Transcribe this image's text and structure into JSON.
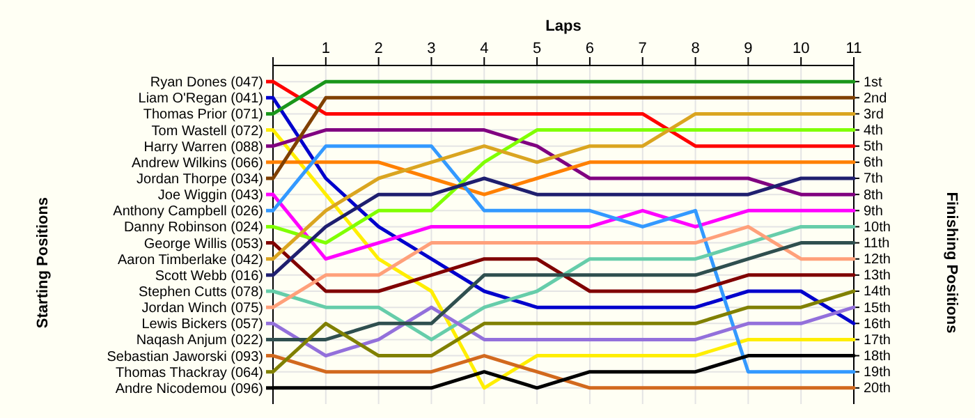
{
  "chart_data": {
    "type": "line",
    "xlabel": "Laps",
    "ylabel": "Finishing Positions",
    "annotations": [
      "Starting Positions"
    ],
    "x": [
      0,
      1,
      2,
      3,
      4,
      5,
      6,
      7,
      8,
      9,
      10,
      11
    ],
    "xlim": [
      0,
      11
    ],
    "xticks": [
      1,
      2,
      3,
      4,
      5,
      6,
      7,
      8,
      9,
      10,
      11
    ],
    "ylim": [
      21,
      0
    ],
    "yticks": [
      {
        "value": 1,
        "label": "1st"
      },
      {
        "value": 2,
        "label": "2nd"
      },
      {
        "value": 3,
        "label": "3rd"
      },
      {
        "value": 4,
        "label": "4th"
      },
      {
        "value": 5,
        "label": "5th"
      },
      {
        "value": 6,
        "label": "6th"
      },
      {
        "value": 7,
        "label": "7th"
      },
      {
        "value": 8,
        "label": "8th"
      },
      {
        "value": 9,
        "label": "9th"
      },
      {
        "value": 10,
        "label": "10th"
      },
      {
        "value": 11,
        "label": "11th"
      },
      {
        "value": 12,
        "label": "12th"
      },
      {
        "value": 13,
        "label": "13th"
      },
      {
        "value": 14,
        "label": "14th"
      },
      {
        "value": 15,
        "label": "15th"
      },
      {
        "value": 16,
        "label": "16th"
      },
      {
        "value": 17,
        "label": "17th"
      },
      {
        "value": 18,
        "label": "18th"
      },
      {
        "value": 19,
        "label": "19th"
      },
      {
        "value": 20,
        "label": "20th"
      }
    ],
    "grid": true,
    "legend": "left",
    "marker": "none",
    "line_style": "solid",
    "series": [
      {
        "name": "Ryan Dones (047)",
        "color": "#ff0000",
        "values": [
          1,
          3,
          3,
          3,
          3,
          3,
          3,
          3,
          5,
          5,
          5,
          5
        ]
      },
      {
        "name": "Liam O'Regan (041)",
        "color": "#0000cc",
        "values": [
          2,
          7,
          10,
          12,
          14,
          15,
          15,
          15,
          15,
          14,
          14,
          16
        ]
      },
      {
        "name": "Thomas Prior (071)",
        "color": "#1a961a",
        "values": [
          3,
          1,
          1,
          1,
          1,
          1,
          1,
          1,
          1,
          1,
          1,
          1
        ]
      },
      {
        "name": "Tom Wastell (072)",
        "color": "#ffee00",
        "values": [
          4,
          8,
          12,
          14,
          20,
          18,
          18,
          18,
          18,
          17,
          17,
          17
        ]
      },
      {
        "name": "Harry Warren (088)",
        "color": "#800080",
        "values": [
          5,
          4,
          4,
          4,
          4,
          5,
          7,
          7,
          7,
          7,
          8,
          8
        ]
      },
      {
        "name": "Andrew Wilkins (066)",
        "color": "#ff8000",
        "values": [
          6,
          6,
          6,
          7,
          8,
          7,
          6,
          6,
          6,
          6,
          6,
          6
        ]
      },
      {
        "name": "Jordan Thorpe (034)",
        "color": "#804000",
        "values": [
          7,
          2,
          2,
          2,
          2,
          2,
          2,
          2,
          2,
          2,
          2,
          2
        ]
      },
      {
        "name": "Joe Wiggin (043)",
        "color": "#ff00ff",
        "values": [
          8,
          12,
          11,
          10,
          10,
          10,
          10,
          9,
          10,
          9,
          9,
          9
        ]
      },
      {
        "name": "Anthony Campbell (026)",
        "color": "#3399ff",
        "values": [
          9,
          5,
          5,
          5,
          9,
          9,
          9,
          10,
          9,
          19,
          19,
          19
        ]
      },
      {
        "name": "Danny Robinson (024)",
        "color": "#80ff00",
        "values": [
          10,
          11,
          9,
          9,
          6,
          4,
          4,
          4,
          4,
          4,
          4,
          4
        ]
      },
      {
        "name": "George Willis (053)",
        "color": "#800000",
        "values": [
          11,
          14,
          14,
          13,
          12,
          12,
          14,
          14,
          14,
          13,
          13,
          13
        ]
      },
      {
        "name": "Aaron Timberlake (042)",
        "color": "#daa520",
        "values": [
          12,
          9,
          7,
          6,
          5,
          6,
          5,
          5,
          3,
          3,
          3,
          3
        ]
      },
      {
        "name": "Scott Webb (016)",
        "color": "#1f1f6f",
        "values": [
          13,
          10,
          8,
          8,
          7,
          8,
          8,
          8,
          8,
          8,
          7,
          7
        ]
      },
      {
        "name": "Stephen Cutts (078)",
        "color": "#66cdaa",
        "values": [
          14,
          15,
          15,
          17,
          15,
          14,
          12,
          12,
          12,
          11,
          10,
          10
        ]
      },
      {
        "name": "Jordan Winch (075)",
        "color": "#ffa07a",
        "values": [
          15,
          13,
          13,
          11,
          11,
          11,
          11,
          11,
          11,
          10,
          12,
          12
        ]
      },
      {
        "name": "Lewis Bickers (057)",
        "color": "#9370db",
        "values": [
          16,
          18,
          17,
          15,
          17,
          17,
          17,
          17,
          17,
          16,
          16,
          15
        ]
      },
      {
        "name": "Naqash Anjum (022)",
        "color": "#2f4f4f",
        "values": [
          17,
          17,
          16,
          16,
          13,
          13,
          13,
          13,
          13,
          12,
          11,
          11
        ]
      },
      {
        "name": "Sebastian Jaworski (093)",
        "color": "#d2691e",
        "values": [
          18,
          19,
          19,
          19,
          18,
          19,
          20,
          20,
          20,
          20,
          20,
          20
        ]
      },
      {
        "name": "Thomas Thackray (064)",
        "color": "#808000",
        "values": [
          19,
          16,
          18,
          18,
          16,
          16,
          16,
          16,
          16,
          15,
          15,
          14
        ]
      },
      {
        "name": "Andre Nicodemou (096)",
        "color": "#000000",
        "values": [
          20,
          20,
          20,
          20,
          19,
          20,
          19,
          19,
          19,
          18,
          18,
          18
        ]
      }
    ]
  }
}
